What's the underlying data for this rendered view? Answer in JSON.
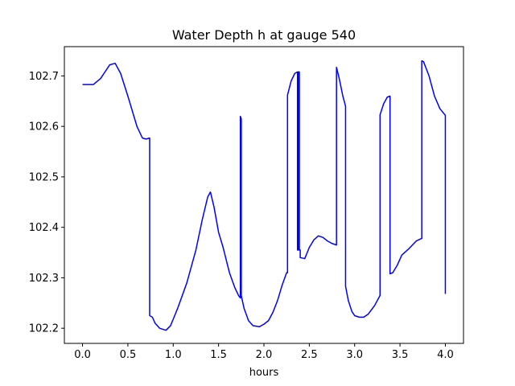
{
  "chart_data": {
    "type": "line",
    "title": "Water Depth h at gauge 540",
    "xlabel": "hours",
    "ylabel": "",
    "xlim": [
      -0.2,
      4.2
    ],
    "ylim": [
      102.17,
      102.758
    ],
    "xticks": [
      0.0,
      0.5,
      1.0,
      1.5,
      2.0,
      2.5,
      3.0,
      3.5,
      4.0
    ],
    "xtick_labels": [
      "0.0",
      "0.5",
      "1.0",
      "1.5",
      "2.0",
      "2.5",
      "3.0",
      "3.5",
      "4.0"
    ],
    "yticks": [
      102.2,
      102.3,
      102.4,
      102.5,
      102.6,
      102.7
    ],
    "ytick_labels": [
      "102.2",
      "102.3",
      "102.4",
      "102.5",
      "102.6",
      "102.7"
    ],
    "grid": false,
    "series": [
      {
        "color": "#0000ff",
        "x": [
          0.0,
          0.12,
          0.2,
          0.3,
          0.36,
          0.42,
          0.5,
          0.6,
          0.66,
          0.7,
          0.74,
          0.74,
          0.77,
          0.8,
          0.85,
          0.92,
          0.97,
          1.0,
          1.05,
          1.15,
          1.25,
          1.32,
          1.38,
          1.41,
          1.45,
          1.5,
          1.55,
          1.62,
          1.68,
          1.72,
          1.74,
          1.74,
          1.75,
          1.75,
          1.78,
          1.83,
          1.88,
          1.95,
          2.0,
          2.05,
          2.1,
          2.15,
          2.2,
          2.25,
          2.26,
          2.26,
          2.3,
          2.34,
          2.37,
          2.37,
          2.38,
          2.38,
          2.39,
          2.39,
          2.4,
          2.4,
          2.45,
          2.5,
          2.55,
          2.6,
          2.65,
          2.7,
          2.75,
          2.8,
          2.8,
          2.83,
          2.87,
          2.9,
          2.9,
          2.93,
          2.97,
          3.0,
          3.05,
          3.1,
          3.15,
          3.22,
          3.28,
          3.28,
          3.32,
          3.36,
          3.39,
          3.39,
          3.42,
          3.47,
          3.52,
          3.6,
          3.68,
          3.74,
          3.74,
          3.76,
          3.82,
          3.88,
          3.94,
          4.0,
          4.0
        ],
        "y": [
          102.683,
          102.683,
          102.695,
          102.722,
          102.725,
          102.705,
          102.66,
          102.6,
          102.577,
          102.575,
          102.577,
          102.225,
          102.222,
          102.21,
          102.2,
          102.196,
          102.205,
          102.218,
          102.24,
          102.29,
          102.355,
          102.415,
          102.46,
          102.47,
          102.44,
          102.39,
          102.36,
          102.31,
          102.28,
          102.265,
          102.26,
          102.62,
          102.615,
          102.265,
          102.24,
          102.215,
          102.205,
          102.203,
          102.208,
          102.215,
          102.232,
          102.255,
          102.285,
          102.31,
          102.31,
          102.662,
          102.69,
          102.705,
          102.708,
          102.355,
          102.355,
          102.708,
          102.708,
          102.355,
          102.355,
          102.34,
          102.338,
          102.36,
          102.375,
          102.383,
          102.38,
          102.373,
          102.368,
          102.365,
          102.717,
          102.695,
          102.66,
          102.64,
          102.283,
          102.255,
          102.233,
          102.225,
          102.222,
          102.222,
          102.228,
          102.245,
          102.265,
          102.623,
          102.645,
          102.658,
          102.66,
          102.308,
          102.31,
          102.325,
          102.345,
          102.358,
          102.373,
          102.378,
          102.73,
          102.728,
          102.7,
          102.66,
          102.635,
          102.622,
          102.268
        ]
      }
    ]
  }
}
